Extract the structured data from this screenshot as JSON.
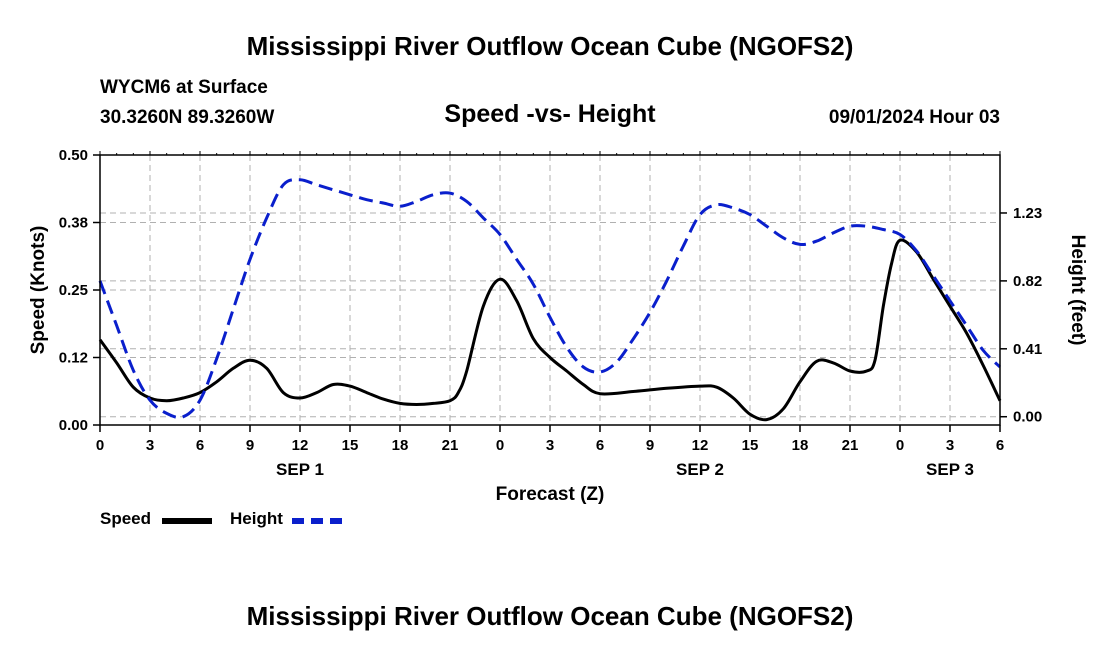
{
  "page": {
    "main_title": "Mississippi River Outflow Ocean Cube (NGOFS2)",
    "footer_title": "Mississippi River Outflow Ocean Cube (NGOFS2)",
    "station_line": "WYCM6 at Surface",
    "coords_line": "30.3260N  89.3260W",
    "subtitle": "Speed -vs- Height",
    "datetime": "09/01/2024 Hour 03"
  },
  "chart_data": {
    "type": "line",
    "title": "Speed -vs- Height",
    "xlabel": "Forecast (Z)",
    "ylabel": "Speed (Knots)",
    "y2label": "Height (feet)",
    "x_range": [
      0,
      54
    ],
    "ylim": [
      0,
      0.5
    ],
    "y2lim": [
      -0.05,
      1.58
    ],
    "x_tick_values": [
      0,
      3,
      6,
      9,
      12,
      15,
      18,
      21,
      24,
      27,
      30,
      33,
      36,
      39,
      42,
      45,
      48,
      51,
      54
    ],
    "x_tick_labels": [
      "0",
      "3",
      "6",
      "9",
      "12",
      "15",
      "18",
      "21",
      "0",
      "3",
      "6",
      "9",
      "12",
      "15",
      "18",
      "21",
      "0",
      "3",
      "6"
    ],
    "day_labels": [
      {
        "label": "SEP 1",
        "x": 12
      },
      {
        "label": "SEP 2",
        "x": 36
      },
      {
        "label": "SEP 3",
        "x": 51
      }
    ],
    "y_ticks": [
      {
        "value": 0.0,
        "label": "0.00"
      },
      {
        "value": 0.125,
        "label": "0.12"
      },
      {
        "value": 0.25,
        "label": "0.25"
      },
      {
        "value": 0.375,
        "label": "0.38"
      },
      {
        "value": 0.5,
        "label": "0.50"
      }
    ],
    "y2_ticks": [
      {
        "value": 0.0,
        "label": "0.00"
      },
      {
        "value": 0.41,
        "label": "0.41"
      },
      {
        "value": 0.82,
        "label": "0.82"
      },
      {
        "value": 1.23,
        "label": "1.23"
      }
    ],
    "series": [
      {
        "name": "Speed",
        "axis": "left",
        "color": "#000000",
        "dash": "solid",
        "points": [
          [
            0,
            0.158
          ],
          [
            1,
            0.115
          ],
          [
            2,
            0.07
          ],
          [
            3,
            0.05
          ],
          [
            4,
            0.045
          ],
          [
            5,
            0.05
          ],
          [
            6,
            0.06
          ],
          [
            7,
            0.08
          ],
          [
            8,
            0.105
          ],
          [
            9,
            0.12
          ],
          [
            10,
            0.105
          ],
          [
            11,
            0.06
          ],
          [
            12,
            0.05
          ],
          [
            13,
            0.06
          ],
          [
            14,
            0.075
          ],
          [
            15,
            0.072
          ],
          [
            16,
            0.06
          ],
          [
            17,
            0.048
          ],
          [
            18,
            0.04
          ],
          [
            19,
            0.038
          ],
          [
            20,
            0.04
          ],
          [
            21,
            0.045
          ],
          [
            21.5,
            0.06
          ],
          [
            22,
            0.1
          ],
          [
            23,
            0.22
          ],
          [
            24,
            0.27
          ],
          [
            25,
            0.23
          ],
          [
            26,
            0.16
          ],
          [
            27,
            0.125
          ],
          [
            28,
            0.1
          ],
          [
            29,
            0.075
          ],
          [
            30,
            0.058
          ],
          [
            32,
            0.062
          ],
          [
            34,
            0.068
          ],
          [
            36,
            0.072
          ],
          [
            37,
            0.07
          ],
          [
            38,
            0.05
          ],
          [
            39,
            0.02
          ],
          [
            40,
            0.01
          ],
          [
            41,
            0.03
          ],
          [
            42,
            0.08
          ],
          [
            43,
            0.118
          ],
          [
            44,
            0.115
          ],
          [
            45,
            0.1
          ],
          [
            46,
            0.1
          ],
          [
            46.5,
            0.12
          ],
          [
            47,
            0.22
          ],
          [
            47.5,
            0.3
          ],
          [
            48,
            0.342
          ],
          [
            49,
            0.32
          ],
          [
            50,
            0.27
          ],
          [
            51,
            0.22
          ],
          [
            52,
            0.17
          ],
          [
            53,
            0.11
          ],
          [
            54,
            0.045
          ]
        ]
      },
      {
        "name": "Height",
        "axis": "right",
        "color": "#0a1fcc",
        "dash": "dashed",
        "points": [
          [
            0,
            0.82
          ],
          [
            1,
            0.55
          ],
          [
            2,
            0.28
          ],
          [
            3,
            0.1
          ],
          [
            4,
            0.02
          ],
          [
            5,
            0.0
          ],
          [
            6,
            0.1
          ],
          [
            7,
            0.35
          ],
          [
            8,
            0.65
          ],
          [
            9,
            0.95
          ],
          [
            10,
            1.2
          ],
          [
            11,
            1.4
          ],
          [
            12,
            1.43
          ],
          [
            13,
            1.4
          ],
          [
            14,
            1.37
          ],
          [
            15,
            1.34
          ],
          [
            16,
            1.31
          ],
          [
            17,
            1.29
          ],
          [
            18,
            1.27
          ],
          [
            19,
            1.3
          ],
          [
            20,
            1.34
          ],
          [
            21,
            1.35
          ],
          [
            22,
            1.3
          ],
          [
            23,
            1.2
          ],
          [
            24,
            1.1
          ],
          [
            25,
            0.95
          ],
          [
            26,
            0.8
          ],
          [
            27,
            0.6
          ],
          [
            28,
            0.42
          ],
          [
            29,
            0.3
          ],
          [
            30,
            0.27
          ],
          [
            31,
            0.33
          ],
          [
            32,
            0.47
          ],
          [
            33,
            0.63
          ],
          [
            34,
            0.82
          ],
          [
            35,
            1.03
          ],
          [
            36,
            1.22
          ],
          [
            37,
            1.28
          ],
          [
            38,
            1.26
          ],
          [
            39,
            1.22
          ],
          [
            40,
            1.15
          ],
          [
            41,
            1.08
          ],
          [
            42,
            1.04
          ],
          [
            43,
            1.06
          ],
          [
            44,
            1.11
          ],
          [
            45,
            1.15
          ],
          [
            46,
            1.15
          ],
          [
            47,
            1.13
          ],
          [
            48,
            1.1
          ],
          [
            49,
            1.0
          ],
          [
            50,
            0.85
          ],
          [
            51,
            0.7
          ],
          [
            52,
            0.55
          ],
          [
            53,
            0.4
          ],
          [
            54,
            0.3
          ]
        ]
      }
    ],
    "legend": [
      {
        "label": "Speed",
        "color": "#000000",
        "dash": "solid"
      },
      {
        "label": "Height",
        "color": "#0a1fcc",
        "dash": "dashed"
      }
    ],
    "grid": true
  }
}
